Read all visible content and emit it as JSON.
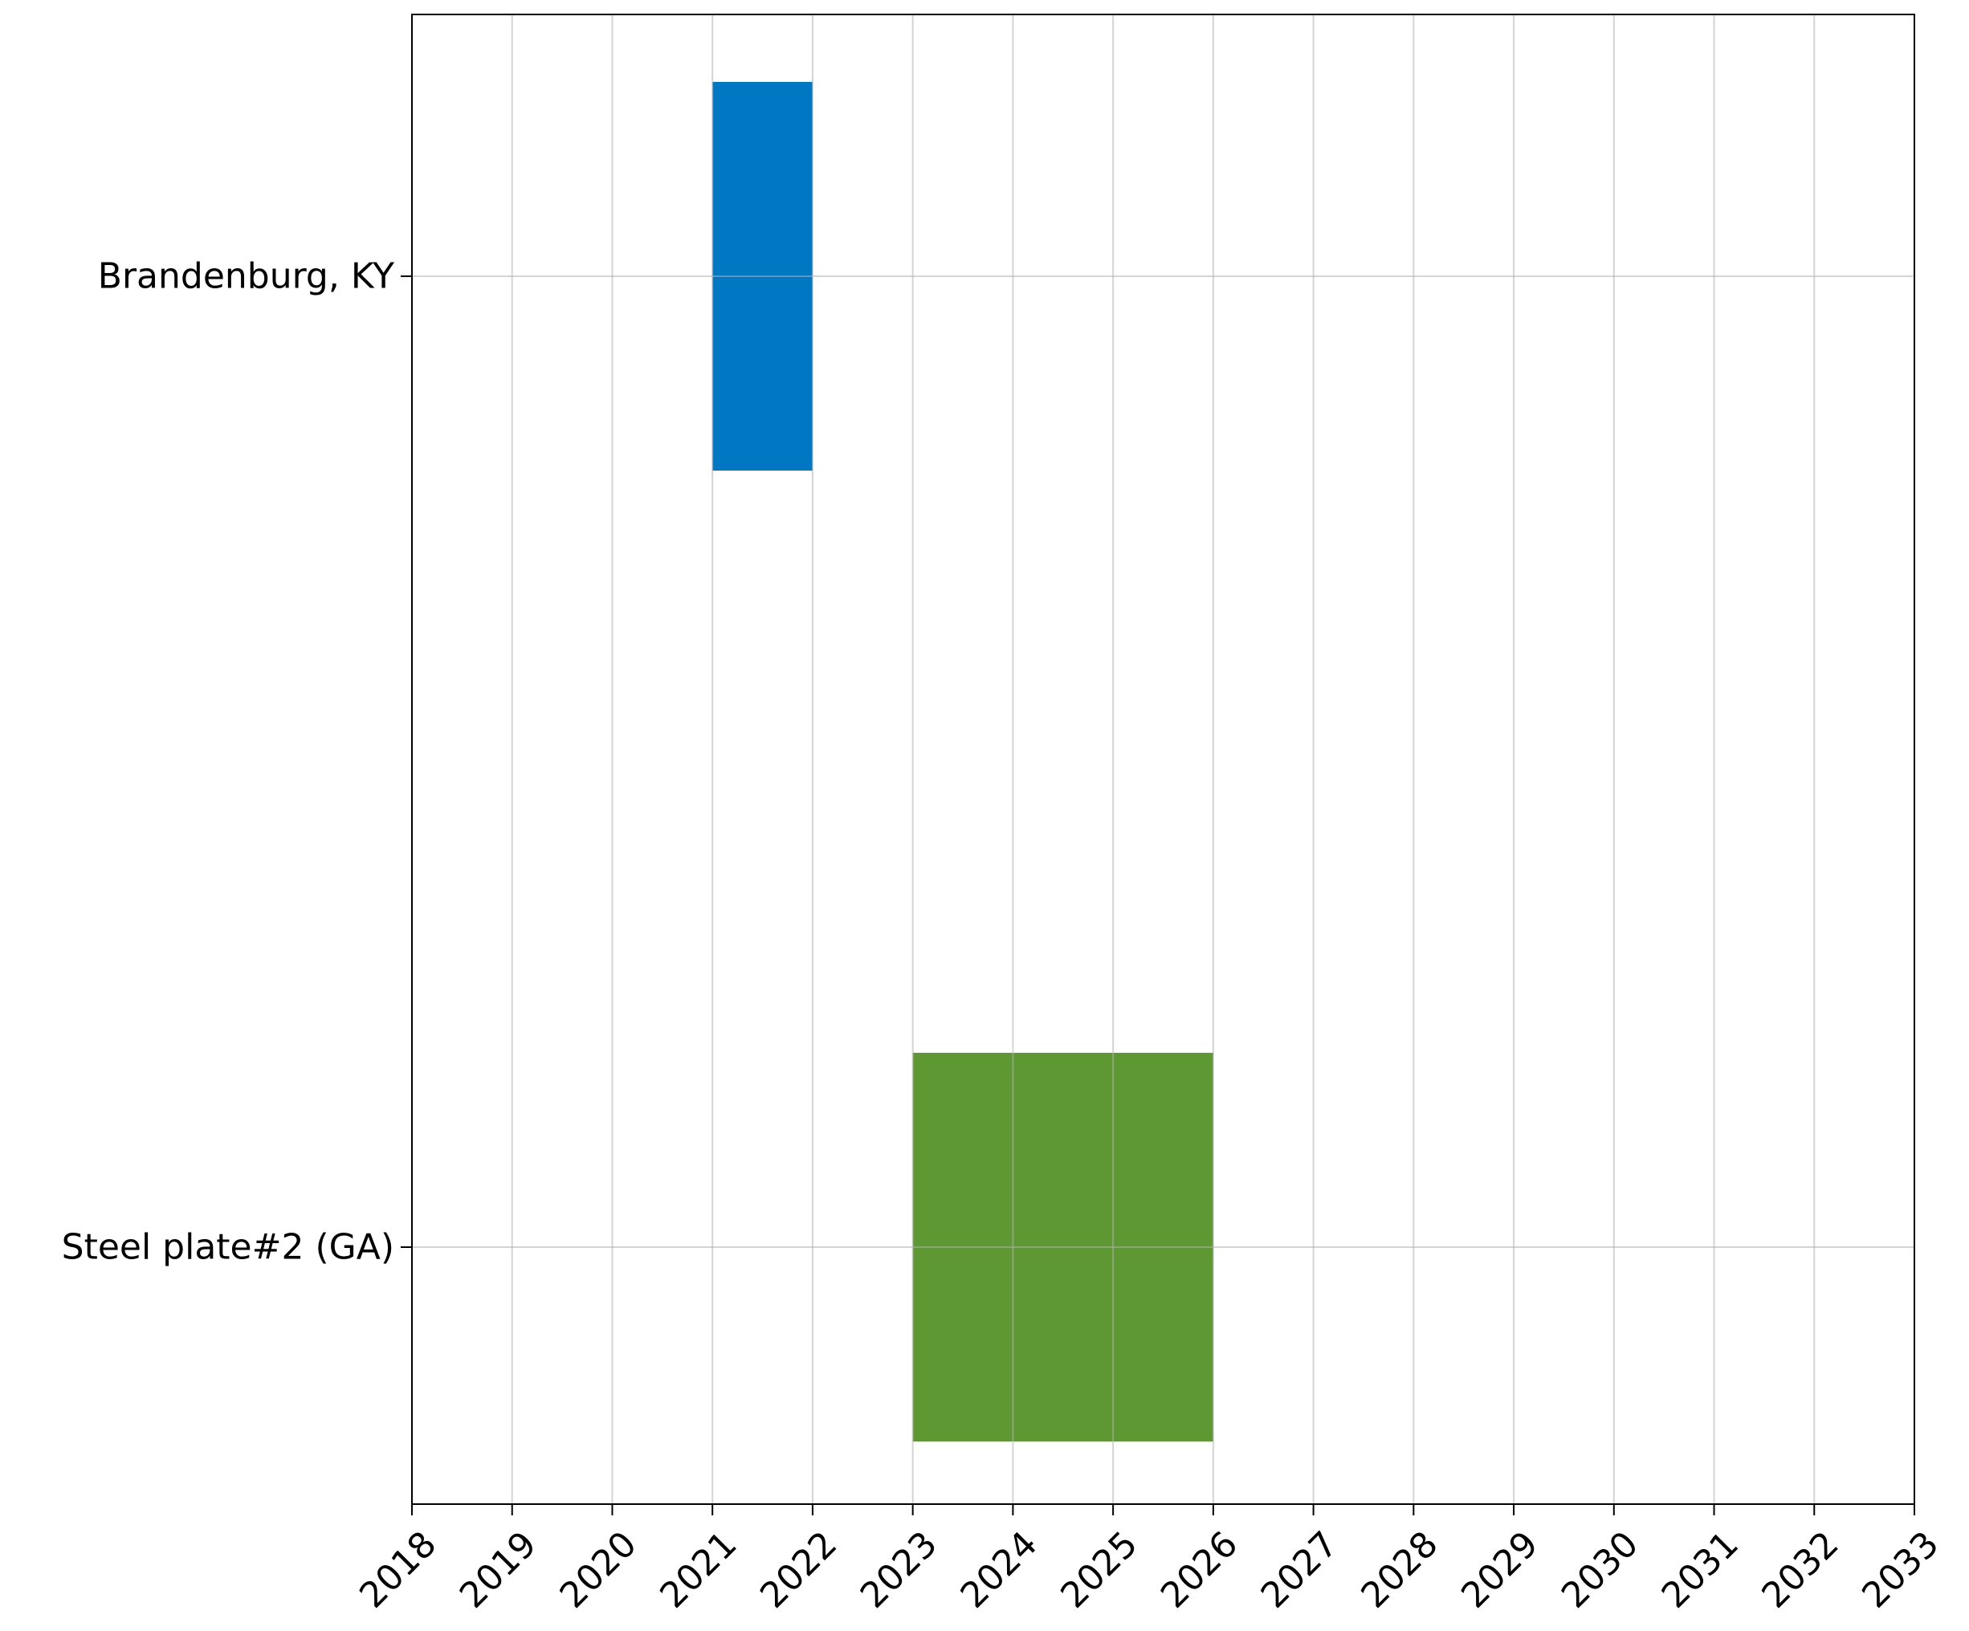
{
  "chart_data": {
    "type": "bar",
    "orientation": "horizontal",
    "title": "",
    "xlabel": "",
    "ylabel": "",
    "xlim": [
      2018,
      2033
    ],
    "xticks": [
      "2018",
      "2019",
      "2020",
      "2021",
      "2022",
      "2023",
      "2024",
      "2025",
      "2026",
      "2027",
      "2028",
      "2029",
      "2030",
      "2031",
      "2032",
      "2033"
    ],
    "categories": [
      "Brandenburg, KY",
      "Steel plate#2 (GA)"
    ],
    "bars": [
      {
        "category": "Brandenburg, KY",
        "start": 2021,
        "end": 2022,
        "color": "#0077c2"
      },
      {
        "category": "Steel plate#2 (GA)",
        "start": 2023,
        "end": 2026,
        "color": "#5e9833"
      }
    ],
    "grid": true,
    "legend": "none"
  }
}
